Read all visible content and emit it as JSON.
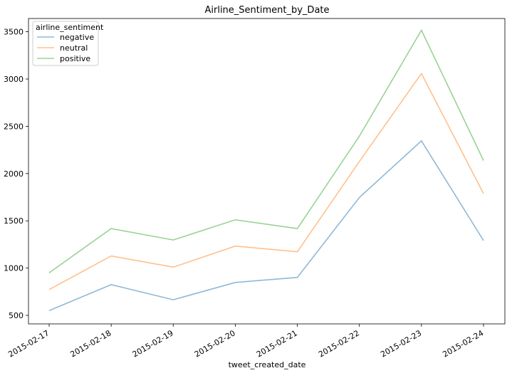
{
  "chart_data": {
    "type": "line",
    "title": "Airline_Sentiment_by_Date",
    "xlabel": "tweet_created_date",
    "ylabel": "",
    "categories": [
      "2015-02-17",
      "2015-02-18",
      "2015-02-19",
      "2015-02-20",
      "2015-02-21",
      "2015-02-22",
      "2015-02-23",
      "2015-02-24"
    ],
    "ylim": [
      410,
      3640
    ],
    "yticks": [
      500,
      1000,
      1500,
      2000,
      2500,
      3000,
      3500
    ],
    "legend": {
      "title": "airline_sentiment",
      "placement": "top-left"
    },
    "grid": false,
    "series": [
      {
        "name": "negative",
        "color": "#8fb9d6",
        "values": [
          550,
          825,
          665,
          848,
          902,
          1747,
          2346,
          1292
        ]
      },
      {
        "name": "neutral",
        "color": "#ffc08c",
        "values": [
          773,
          1128,
          1010,
          1233,
          1173,
          2128,
          3058,
          1788
        ]
      },
      {
        "name": "positive",
        "color": "#98d493",
        "values": [
          950,
          1418,
          1298,
          1511,
          1418,
          2396,
          3516,
          2138
        ]
      }
    ]
  }
}
